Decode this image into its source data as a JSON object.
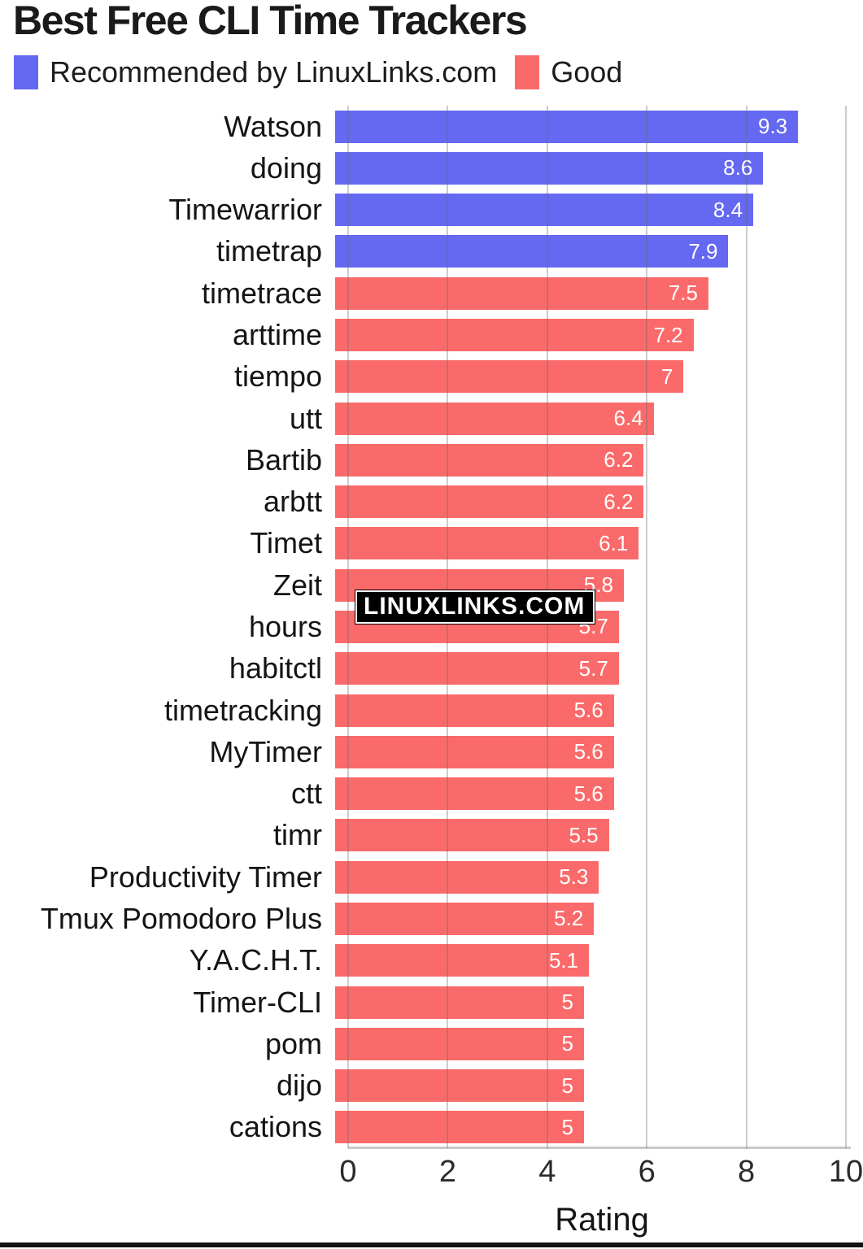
{
  "title": "Best Free CLI Time Trackers",
  "watermark": "LINUXLINKS.COM",
  "legend": {
    "items": [
      {
        "key": "recommended",
        "label": "Recommended by LinuxLinks.com",
        "color": "#6568F0"
      },
      {
        "key": "good",
        "label": "Good",
        "color": "#FB6A6A"
      }
    ]
  },
  "colors": {
    "recommended": "#6568F0",
    "good": "#FB6A6A",
    "value_text": "#ffffff"
  },
  "chart_data": {
    "type": "bar",
    "orientation": "horizontal",
    "title": "Best Free CLI Time Trackers",
    "xlabel": "Rating",
    "ylabel": "",
    "xlim": [
      0,
      10
    ],
    "xticks": [
      "0",
      "2",
      "4",
      "6",
      "8",
      "10"
    ],
    "grid": true,
    "legend_position": "top-left",
    "series": [
      {
        "name": "Recommended by LinuxLinks.com",
        "color": "#6568F0"
      },
      {
        "name": "Good",
        "color": "#FB6A6A"
      }
    ],
    "bars": [
      {
        "label": "Watson",
        "value": 9.3,
        "display": "9.3",
        "group": "recommended"
      },
      {
        "label": "doing",
        "value": 8.6,
        "display": "8.6",
        "group": "recommended"
      },
      {
        "label": "Timewarrior",
        "value": 8.4,
        "display": "8.4",
        "group": "recommended"
      },
      {
        "label": "timetrap",
        "value": 7.9,
        "display": "7.9",
        "group": "recommended"
      },
      {
        "label": "timetrace",
        "value": 7.5,
        "display": "7.5",
        "group": "good"
      },
      {
        "label": "arttime",
        "value": 7.2,
        "display": "7.2",
        "group": "good"
      },
      {
        "label": "tiempo",
        "value": 7,
        "display": "7",
        "group": "good"
      },
      {
        "label": "utt",
        "value": 6.4,
        "display": "6.4",
        "group": "good"
      },
      {
        "label": "Bartib",
        "value": 6.2,
        "display": "6.2",
        "group": "good"
      },
      {
        "label": "arbtt",
        "value": 6.2,
        "display": "6.2",
        "group": "good"
      },
      {
        "label": "Timet",
        "value": 6.1,
        "display": "6.1",
        "group": "good"
      },
      {
        "label": "Zeit",
        "value": 5.8,
        "display": "5.8",
        "group": "good"
      },
      {
        "label": "hours",
        "value": 5.7,
        "display": "5.7",
        "group": "good"
      },
      {
        "label": "habitctl",
        "value": 5.7,
        "display": "5.7",
        "group": "good"
      },
      {
        "label": "timetracking",
        "value": 5.6,
        "display": "5.6",
        "group": "good"
      },
      {
        "label": "MyTimer",
        "value": 5.6,
        "display": "5.6",
        "group": "good"
      },
      {
        "label": "ctt",
        "value": 5.6,
        "display": "5.6",
        "group": "good"
      },
      {
        "label": "timr",
        "value": 5.5,
        "display": "5.5",
        "group": "good"
      },
      {
        "label": "Productivity Timer",
        "value": 5.3,
        "display": "5.3",
        "group": "good"
      },
      {
        "label": "Tmux Pomodoro Plus",
        "value": 5.2,
        "display": "5.2",
        "group": "good"
      },
      {
        "label": "Y.A.C.H.T.",
        "value": 5.1,
        "display": "5.1",
        "group": "good"
      },
      {
        "label": "Timer-CLI",
        "value": 5,
        "display": "5",
        "group": "good"
      },
      {
        "label": "pom",
        "value": 5,
        "display": "5",
        "group": "good"
      },
      {
        "label": "dijo",
        "value": 5,
        "display": "5",
        "group": "good"
      },
      {
        "label": "cations",
        "value": 5,
        "display": "5",
        "group": "good"
      }
    ]
  }
}
